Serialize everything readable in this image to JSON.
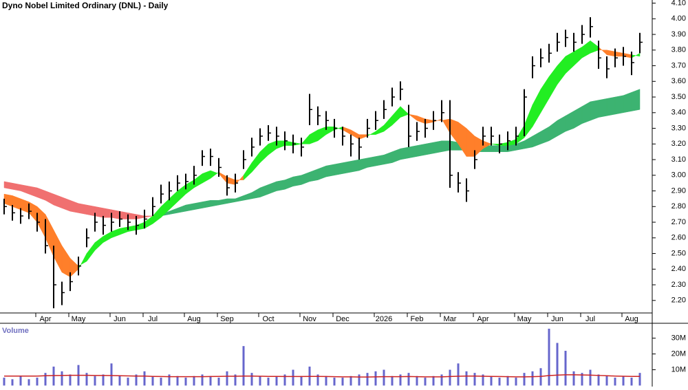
{
  "chart_data": [
    {
      "type": "ohlc",
      "title": "Dyno Nobel Limited Ordinary (DNL) - Daily",
      "categories": [
        null,
        null,
        null,
        null,
        null,
        "Apr",
        null,
        null,
        null,
        "May",
        null,
        null,
        null,
        null,
        "Jun",
        null,
        null,
        null,
        "Jul",
        null,
        null,
        null,
        null,
        "Aug",
        null,
        null,
        null,
        "Sep",
        null,
        null,
        null,
        null,
        "Oct",
        null,
        null,
        null,
        null,
        "Nov",
        null,
        null,
        null,
        "Dec",
        null,
        null,
        null,
        null,
        "2026",
        null,
        null,
        null,
        "Feb",
        null,
        null,
        null,
        "Mar",
        null,
        null,
        null,
        "Apr",
        null,
        null,
        null,
        null,
        "May",
        null,
        null,
        null,
        "Jun",
        null,
        null,
        null,
        "Jul",
        null,
        null,
        null,
        null,
        "Aug",
        null
      ],
      "close": [
        2.8,
        2.76,
        2.74,
        2.77,
        2.7,
        2.55,
        2.3,
        2.25,
        2.32,
        2.42,
        2.6,
        2.7,
        2.68,
        2.7,
        2.72,
        2.7,
        2.68,
        2.72,
        2.8,
        2.88,
        2.9,
        2.95,
        2.96,
        3.0,
        3.12,
        3.12,
        3.05,
        2.92,
        2.95,
        3.1,
        3.18,
        3.25,
        3.27,
        3.25,
        3.22,
        3.2,
        3.18,
        3.42,
        3.38,
        3.35,
        3.3,
        3.25,
        3.2,
        3.18,
        3.3,
        3.35,
        3.42,
        3.5,
        3.55,
        3.25,
        3.28,
        3.3,
        3.35,
        3.4,
        3.0,
        2.95,
        2.9,
        3.1,
        3.25,
        3.25,
        3.2,
        3.22,
        3.25,
        3.5,
        3.7,
        3.75,
        3.78,
        3.85,
        3.88,
        3.85,
        3.9,
        3.95,
        3.75,
        3.68,
        3.75,
        3.76,
        3.72,
        3.85
      ],
      "high": [
        2.85,
        2.81,
        2.79,
        2.82,
        2.76,
        2.72,
        2.55,
        2.32,
        2.38,
        2.48,
        2.66,
        2.76,
        2.74,
        2.76,
        2.77,
        2.75,
        2.74,
        2.78,
        2.86,
        2.94,
        2.96,
        3.0,
        3.01,
        3.06,
        3.16,
        3.17,
        3.11,
        3.0,
        3.01,
        3.16,
        3.24,
        3.3,
        3.32,
        3.31,
        3.28,
        3.26,
        3.24,
        3.52,
        3.44,
        3.41,
        3.36,
        3.31,
        3.26,
        3.24,
        3.36,
        3.41,
        3.48,
        3.56,
        3.6,
        3.45,
        3.34,
        3.36,
        3.41,
        3.48,
        3.48,
        3.02,
        2.98,
        3.16,
        3.31,
        3.31,
        3.26,
        3.28,
        3.31,
        3.55,
        3.76,
        3.81,
        3.84,
        3.91,
        3.93,
        3.91,
        3.96,
        4.01,
        3.86,
        3.76,
        3.81,
        3.82,
        3.79,
        3.91
      ],
      "low": [
        2.75,
        2.71,
        2.69,
        2.72,
        2.64,
        2.5,
        2.15,
        2.17,
        2.26,
        2.36,
        2.54,
        2.64,
        2.62,
        2.64,
        2.67,
        2.65,
        2.62,
        2.66,
        2.74,
        2.82,
        2.84,
        2.9,
        2.91,
        2.94,
        3.06,
        3.06,
        2.99,
        2.87,
        2.89,
        3.04,
        3.12,
        3.19,
        3.22,
        3.19,
        3.16,
        3.14,
        3.12,
        3.32,
        3.32,
        3.29,
        3.24,
        3.19,
        3.12,
        3.1,
        3.24,
        3.29,
        3.36,
        3.44,
        3.48,
        3.18,
        3.22,
        3.24,
        3.29,
        3.34,
        2.92,
        2.89,
        2.83,
        3.04,
        3.19,
        3.19,
        3.14,
        3.16,
        3.19,
        3.25,
        3.62,
        3.69,
        3.72,
        3.79,
        3.82,
        3.79,
        3.84,
        3.88,
        3.68,
        3.62,
        3.69,
        3.7,
        3.64,
        3.78
      ],
      "bands": [
        {
          "fast": [
            2.82,
            2.8,
            2.78,
            2.76,
            2.7,
            2.6,
            2.48,
            2.38,
            2.35,
            2.4,
            2.5,
            2.57,
            2.61,
            2.64,
            2.66,
            2.67,
            2.68,
            2.7,
            2.74,
            2.8,
            2.85,
            2.9,
            2.94,
            2.97,
            3.01,
            3.03,
            3.01,
            2.95,
            2.94,
            3.0,
            3.08,
            3.15,
            3.2,
            3.22,
            3.22,
            3.21,
            3.2,
            3.26,
            3.29,
            3.31,
            3.31,
            3.29,
            3.26,
            3.23,
            3.25,
            3.28,
            3.32,
            3.38,
            3.44,
            3.39,
            3.35,
            3.33,
            3.34,
            3.36,
            3.27,
            3.2,
            3.12,
            3.12,
            3.17,
            3.2,
            3.2,
            3.21,
            3.23,
            3.32,
            3.45,
            3.55,
            3.63,
            3.7,
            3.76,
            3.79,
            3.82,
            3.86,
            3.82,
            3.77,
            3.76,
            3.76,
            3.75,
            3.78
          ],
          "slow": [
            2.88,
            2.87,
            2.85,
            2.83,
            2.8,
            2.75,
            2.65,
            2.55,
            2.47,
            2.42,
            2.45,
            2.52,
            2.57,
            2.6,
            2.62,
            2.64,
            2.65,
            2.66,
            2.69,
            2.73,
            2.78,
            2.83,
            2.88,
            2.92,
            2.95,
            2.98,
            3.02,
            2.99,
            2.97,
            2.97,
            3.02,
            3.08,
            3.13,
            3.17,
            3.19,
            3.19,
            3.2,
            3.2,
            3.22,
            3.26,
            3.29,
            3.31,
            3.29,
            3.26,
            3.26,
            3.26,
            3.28,
            3.32,
            3.37,
            3.39,
            3.38,
            3.36,
            3.35,
            3.35,
            3.36,
            3.34,
            3.3,
            3.25,
            3.22,
            3.2,
            3.19,
            3.19,
            3.2,
            3.24,
            3.31,
            3.4,
            3.49,
            3.58,
            3.65,
            3.7,
            3.75,
            3.78,
            3.8,
            3.8,
            3.79,
            3.78,
            3.77,
            3.76
          ],
          "up_color": "#22ee22",
          "down_color": "#ff7f2a"
        },
        {
          "fast": [
            2.92,
            2.91,
            2.9,
            2.88,
            2.86,
            2.84,
            2.81,
            2.79,
            2.77,
            2.76,
            2.75,
            2.74,
            2.73,
            2.73,
            2.72,
            2.72,
            2.72,
            2.73,
            2.74,
            2.75,
            2.77,
            2.79,
            2.81,
            2.82,
            2.83,
            2.84,
            2.84,
            2.85,
            2.85,
            2.87,
            2.89,
            2.92,
            2.94,
            2.96,
            2.97,
            2.99,
            3.0,
            3.02,
            3.04,
            3.06,
            3.07,
            3.08,
            3.09,
            3.1,
            3.11,
            3.12,
            3.13,
            3.15,
            3.17,
            3.18,
            3.19,
            3.2,
            3.21,
            3.22,
            3.22,
            3.21,
            3.2,
            3.19,
            3.19,
            3.19,
            3.19,
            3.2,
            3.2,
            3.22,
            3.25,
            3.28,
            3.31,
            3.35,
            3.38,
            3.41,
            3.44,
            3.47,
            3.48,
            3.49,
            3.5,
            3.51,
            3.53,
            3.55
          ],
          "slow": [
            2.96,
            2.95,
            2.94,
            2.93,
            2.92,
            2.9,
            2.88,
            2.86,
            2.84,
            2.82,
            2.81,
            2.8,
            2.79,
            2.78,
            2.77,
            2.76,
            2.75,
            2.74,
            2.74,
            2.74,
            2.75,
            2.76,
            2.77,
            2.78,
            2.79,
            2.8,
            2.81,
            2.82,
            2.83,
            2.84,
            2.85,
            2.86,
            2.88,
            2.9,
            2.91,
            2.93,
            2.94,
            2.96,
            2.97,
            2.99,
            3.0,
            3.01,
            3.02,
            3.03,
            3.05,
            3.06,
            3.07,
            3.08,
            3.1,
            3.11,
            3.12,
            3.13,
            3.14,
            3.15,
            3.16,
            3.16,
            3.16,
            3.15,
            3.15,
            3.15,
            3.15,
            3.15,
            3.16,
            3.17,
            3.18,
            3.2,
            3.22,
            3.25,
            3.28,
            3.3,
            3.33,
            3.35,
            3.37,
            3.38,
            3.39,
            3.4,
            3.41,
            3.42
          ],
          "up_color": "#3cb371",
          "down_color": "#f07070"
        }
      ],
      "bar_color": "#000000",
      "ylim": [
        2.12,
        4.12
      ],
      "yticks": [
        {
          "value": 2.2,
          "label": "2.20"
        },
        {
          "value": 2.3,
          "label": "2.30"
        },
        {
          "value": 2.4,
          "label": "2.40"
        },
        {
          "value": 2.5,
          "label": "2.50"
        },
        {
          "value": 2.6,
          "label": "2.60"
        },
        {
          "value": 2.7,
          "label": "2.70"
        },
        {
          "value": 2.8,
          "label": "2.80"
        },
        {
          "value": 2.9,
          "label": "2.90"
        },
        {
          "value": 3.0,
          "label": "3.00"
        },
        {
          "value": 3.1,
          "label": "3.10"
        },
        {
          "value": 3.2,
          "label": "3.20"
        },
        {
          "value": 3.3,
          "label": "3.30"
        },
        {
          "value": 3.4,
          "label": "3.40"
        },
        {
          "value": 3.5,
          "label": "3.50"
        },
        {
          "value": 3.6,
          "label": "3.60"
        },
        {
          "value": 3.7,
          "label": "3.70"
        },
        {
          "value": 3.8,
          "label": "3.80"
        },
        {
          "value": 3.9,
          "label": "3.90"
        },
        {
          "value": 4.0,
          "label": "4.00"
        },
        {
          "value": 4.1,
          "label": "4.10"
        }
      ]
    },
    {
      "type": "bar",
      "title": "Volume",
      "values": [
        5,
        4,
        6,
        4,
        5,
        8,
        12,
        9,
        7,
        13,
        8,
        6,
        7,
        14,
        6,
        5,
        7,
        9,
        6,
        5,
        7,
        6,
        5,
        6,
        7,
        6,
        5,
        9,
        7,
        25,
        8,
        6,
        5,
        6,
        7,
        10,
        6,
        12,
        7,
        6,
        5,
        5,
        6,
        7,
        8,
        9,
        10,
        6,
        7,
        8,
        6,
        5,
        6,
        7,
        10,
        14,
        9,
        8,
        7,
        6,
        5,
        6,
        5,
        8,
        9,
        11,
        36,
        27,
        22,
        9,
        8,
        10,
        7,
        6,
        5,
        6,
        5,
        8
      ],
      "average": [
        6,
        6,
        6,
        6,
        6,
        6.2,
        6.3,
        6.4,
        6.5,
        6.5,
        6.5,
        6.4,
        6.4,
        6.3,
        6.2,
        6.1,
        6,
        6,
        5.8,
        5.7,
        5.6,
        5.6,
        5.6,
        5.6,
        5.6,
        5.7,
        5.8,
        5.9,
        5.9,
        6,
        6,
        5.9,
        5.8,
        5.8,
        5.7,
        5.7,
        5.7,
        5.8,
        5.8,
        5.7,
        5.6,
        5.5,
        5.5,
        5.4,
        5.4,
        5.5,
        5.6,
        5.6,
        5.6,
        5.7,
        5.6,
        5.5,
        5.5,
        5.5,
        5.7,
        5.9,
        6,
        6,
        5.9,
        5.8,
        5.7,
        5.6,
        5.5,
        5.5,
        5.6,
        5.8,
        6.3,
        6.6,
        6.8,
        6.8,
        6.7,
        6.6,
        6.4,
        6.2,
        6,
        5.9,
        5.8,
        5.8
      ],
      "color": "#6666cc",
      "average_color": "#cc2222",
      "ylim": [
        0,
        39
      ],
      "yticks": [
        {
          "value": 10,
          "label": "10M"
        },
        {
          "value": 20,
          "label": "20M"
        },
        {
          "value": 30,
          "label": "30M"
        }
      ]
    }
  ]
}
